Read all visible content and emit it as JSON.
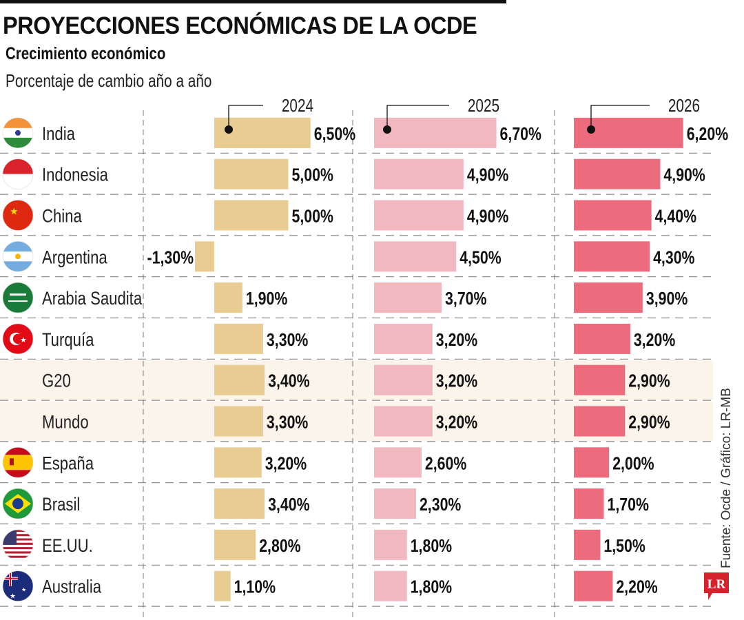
{
  "title": "PROYECCIONES ECONÓMICAS DE LA OCDE",
  "subtitle": "Crecimiento económico",
  "description": "Porcentaje de cambio año a año",
  "source": "Fuente: Ocde / Gráfico: LR-MB",
  "logo_text": "LR",
  "colors": {
    "2024": "#E8CC92",
    "2025": "#F2B8BF",
    "2026": "#EC6C7E",
    "highlight_row": "#FBF4EA",
    "logo": "#D3242C"
  },
  "chart_data": {
    "type": "bar",
    "orientation": "horizontal",
    "title": "PROYECCIONES ECONÓMICAS DE LA OCDE",
    "subtitle": "Crecimiento económico",
    "unit": "Porcentaje de cambio año a año",
    "categories": [
      "India",
      "Indonesia",
      "China",
      "Argentina",
      "Arabia Saudita",
      "Turquía",
      "G20",
      "Mundo",
      "España",
      "Brasil",
      "EE.UU.",
      "Australia"
    ],
    "flags": [
      "india-flag",
      "indonesia-flag",
      "china-flag",
      "argentina-flag",
      "saudi-arabia-flag",
      "turkey-flag",
      "",
      "",
      "spain-flag",
      "brazil-flag",
      "usa-flag",
      "australia-flag"
    ],
    "highlighted": [
      "G20",
      "Mundo"
    ],
    "series": [
      {
        "name": "2024",
        "values": [
          6.5,
          5.0,
          5.0,
          -1.3,
          1.9,
          3.3,
          3.4,
          3.3,
          3.2,
          3.4,
          2.8,
          1.1
        ],
        "labels": [
          "6,50%",
          "5,00%",
          "5,00%",
          "-1,30%",
          "1,90%",
          "3,30%",
          "3,40%",
          "3,30%",
          "3,20%",
          "3,40%",
          "2,80%",
          "1,10%"
        ]
      },
      {
        "name": "2025",
        "values": [
          6.7,
          4.9,
          4.9,
          4.5,
          3.7,
          3.2,
          3.2,
          3.2,
          2.6,
          2.3,
          1.8,
          1.8
        ],
        "labels": [
          "6,70%",
          "4,90%",
          "4,90%",
          "4,50%",
          "3,70%",
          "3,20%",
          "3,20%",
          "3,20%",
          "2,60%",
          "2,30%",
          "1,80%",
          "1,80%"
        ]
      },
      {
        "name": "2026",
        "values": [
          6.2,
          4.9,
          4.4,
          4.3,
          3.9,
          3.2,
          2.9,
          2.9,
          2.0,
          1.7,
          1.5,
          2.2
        ],
        "labels": [
          "6,20%",
          "4,90%",
          "4,40%",
          "4,30%",
          "3,90%",
          "3,20%",
          "2,90%",
          "2,90%",
          "2,00%",
          "1,70%",
          "1,50%",
          "2,20%"
        ]
      }
    ]
  }
}
